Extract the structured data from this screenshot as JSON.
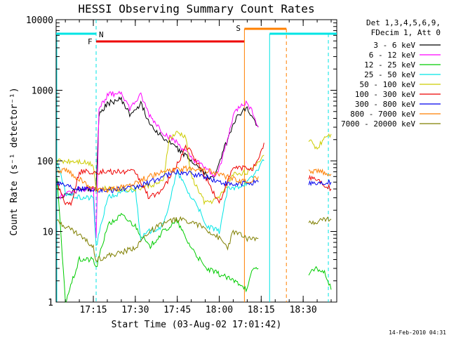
{
  "chart_data": {
    "type": "line",
    "title": "HESSI Observing Summary Count Rates",
    "xlabel": "Start Time (03-Aug-02 17:01:42)",
    "ylabel": "Count Rate (s⁻¹ detector⁻¹)",
    "yscale": "log",
    "ylim": [
      1,
      10000
    ],
    "xlim": [
      "17:01:42",
      "18:42"
    ],
    "x_ticks": [
      "17:15",
      "17:30",
      "17:45",
      "18:00",
      "18:15",
      "18:30"
    ],
    "y_ticks": [
      "1",
      "10",
      "100",
      "1000",
      "10000"
    ],
    "grid": false,
    "legend_position": "right",
    "legend_header": [
      "Det 1,3,4,5,6,9,",
      "FDecim 1, Att 0"
    ],
    "footer_date": "14-Feb-2010 04:31",
    "colors": {
      "3 - 6 keV": "#000000",
      "6 - 12 keV": "#ff00ff",
      "12 - 25 keV": "#00cc00",
      "25 - 50 keV": "#00e5e5",
      "50 - 100 keV": "#cccc00",
      "100 - 300 keV": "#ee0000",
      "300 - 800 keV": "#0000ee",
      "800 - 7000 keV": "#ff7f00",
      "7000 - 20000 keV": "#7f7f00"
    },
    "series": [
      {
        "name": "3 - 6 keV",
        "x": [
          "17:02",
          "17:10",
          "17:16",
          "17:17",
          "17:20",
          "17:25",
          "17:28",
          "17:32",
          "17:35",
          "17:40",
          "17:45",
          "17:50",
          "17:55",
          "17:58",
          "18:00",
          "18:03",
          "18:05",
          "18:08",
          "18:10",
          "18:12",
          "18:14"
        ],
        "values": [
          30,
          40,
          40,
          450,
          650,
          750,
          450,
          650,
          350,
          210,
          150,
          100,
          65,
          55,
          100,
          200,
          350,
          500,
          550,
          400,
          300
        ]
      },
      {
        "name": "6 - 12 keV",
        "x": [
          "17:02",
          "17:10",
          "17:15",
          "17:16",
          "17:17",
          "17:20",
          "17:25",
          "17:28",
          "17:32",
          "17:35",
          "17:40",
          "17:45",
          "17:50",
          "17:55",
          "17:58",
          "18:00",
          "18:03",
          "18:05",
          "18:08",
          "18:10",
          "18:12",
          "18:14"
        ],
        "values": [
          30,
          40,
          40,
          8,
          550,
          850,
          950,
          550,
          850,
          450,
          250,
          180,
          110,
          80,
          60,
          80,
          200,
          450,
          650,
          650,
          500,
          300
        ]
      },
      {
        "name": "12 - 25 keV",
        "x": [
          "17:02",
          "17:05",
          "17:10",
          "17:15",
          "17:16",
          "17:20",
          "17:25",
          "17:30",
          "17:35",
          "17:40",
          "17:45",
          "17:48",
          "17:50",
          "17:53",
          "17:55",
          "18:00",
          "18:05",
          "18:08",
          "18:10",
          "18:12",
          "18:14"
        ],
        "values": [
          60,
          1,
          4,
          4,
          3,
          12,
          17,
          12,
          6,
          10,
          14,
          8,
          6,
          4,
          3,
          2.5,
          2,
          1.8,
          1.5,
          3,
          3
        ]
      },
      {
        "name": "25 - 50 keV",
        "x": [
          "17:02",
          "17:05",
          "17:10",
          "17:15",
          "17:16",
          "17:20",
          "17:25",
          "17:30",
          "17:32",
          "17:35",
          "17:40",
          "17:45",
          "17:50",
          "17:52",
          "17:55",
          "18:00",
          "18:03",
          "18:05",
          "18:10",
          "18:12",
          "18:14",
          "18:16"
        ],
        "values": [
          100,
          35,
          30,
          30,
          6,
          30,
          35,
          40,
          8,
          10,
          12,
          70,
          30,
          25,
          12,
          10,
          40,
          40,
          50,
          60,
          80,
          100
        ]
      },
      {
        "name": "50 - 100 keV",
        "x": [
          "17:02",
          "17:05",
          "17:10",
          "17:15",
          "17:16",
          "17:20",
          "17:25",
          "17:30",
          "17:35",
          "17:40",
          "17:42",
          "17:45",
          "17:48",
          "17:50",
          "17:55",
          "18:00",
          "18:05",
          "18:10",
          "18:12",
          "18:14",
          "18:16"
        ],
        "values": [
          100,
          100,
          100,
          90,
          40,
          40,
          40,
          40,
          45,
          50,
          200,
          250,
          220,
          60,
          25,
          30,
          65,
          70,
          75,
          100,
          120
        ]
      },
      {
        "name": "100 - 300 keV",
        "x": [
          "17:02",
          "17:05",
          "17:07",
          "17:10",
          "17:14",
          "17:16",
          "17:20",
          "17:25",
          "17:30",
          "17:35",
          "17:40",
          "17:45",
          "17:48",
          "17:50",
          "17:55",
          "18:00",
          "18:05",
          "18:10",
          "18:12",
          "18:14",
          "18:16"
        ],
        "values": [
          50,
          25,
          25,
          70,
          70,
          70,
          70,
          70,
          70,
          30,
          40,
          90,
          160,
          130,
          60,
          25,
          80,
          80,
          80,
          100,
          180
        ]
      },
      {
        "name": "300 - 800 keV",
        "x": [
          "17:02",
          "17:10",
          "17:15",
          "17:20",
          "17:25",
          "17:30",
          "17:35",
          "17:40",
          "17:45",
          "17:50",
          "17:55",
          "18:00",
          "18:05",
          "18:10",
          "18:14"
        ],
        "values": [
          50,
          40,
          40,
          38,
          40,
          42,
          50,
          60,
          70,
          65,
          60,
          50,
          45,
          50,
          50
        ]
      },
      {
        "name": "800 - 7000 keV",
        "x": [
          "17:02",
          "17:05",
          "17:10",
          "17:15",
          "17:20",
          "17:25",
          "17:30",
          "17:35",
          "17:40",
          "17:45",
          "17:50",
          "17:55",
          "18:00",
          "18:05",
          "18:10",
          "18:12",
          "18:14"
        ],
        "values": [
          70,
          75,
          55,
          40,
          38,
          42,
          50,
          60,
          70,
          75,
          80,
          75,
          65,
          55,
          50,
          55,
          60
        ]
      },
      {
        "name": "7000 - 20000 keV",
        "x": [
          "17:02",
          "17:05",
          "17:10",
          "17:15",
          "17:16",
          "17:20",
          "17:25",
          "17:30",
          "17:35",
          "17:40",
          "17:45",
          "17:50",
          "17:55",
          "18:00",
          "18:03",
          "18:05",
          "18:10",
          "18:14"
        ],
        "values": [
          14,
          12,
          9,
          6,
          4,
          4.5,
          5,
          6,
          10,
          13,
          15,
          14,
          11,
          8,
          6,
          10,
          8,
          8
        ]
      }
    ],
    "annotations": {
      "labels": [
        "N",
        "F",
        "S"
      ],
      "extra_segments_18_32": [
        {
          "name": "50 - 100 keV",
          "x": [
            "18:32",
            "18:35",
            "18:38",
            "18:40"
          ],
          "values": [
            200,
            150,
            230,
            240
          ]
        },
        {
          "name": "100 - 300 keV",
          "x": [
            "18:32",
            "18:35",
            "18:38",
            "18:40"
          ],
          "values": [
            60,
            55,
            45,
            40
          ]
        },
        {
          "name": "300 - 800 keV",
          "x": [
            "18:32",
            "18:35",
            "18:38",
            "18:40"
          ],
          "values": [
            50,
            48,
            50,
            50
          ]
        },
        {
          "name": "800 - 7000 keV",
          "x": [
            "18:32",
            "18:35",
            "18:38",
            "18:40"
          ],
          "values": [
            70,
            72,
            68,
            65
          ]
        },
        {
          "name": "7000 - 20000 keV",
          "x": [
            "18:32",
            "18:35",
            "18:38",
            "18:40"
          ],
          "values": [
            13,
            14,
            15,
            15
          ]
        },
        {
          "name": "12 - 25 keV",
          "x": [
            "18:32",
            "18:35",
            "18:38",
            "18:40"
          ],
          "values": [
            2.5,
            3,
            2.5,
            1.5
          ]
        }
      ]
    }
  }
}
